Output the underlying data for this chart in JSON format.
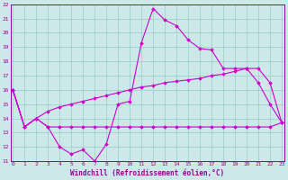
{
  "xlabel": "Windchill (Refroidissement éolien,°C)",
  "x": [
    0,
    1,
    2,
    3,
    4,
    5,
    6,
    7,
    8,
    9,
    10,
    11,
    12,
    13,
    14,
    15,
    16,
    17,
    18,
    19,
    20,
    21,
    22,
    23
  ],
  "line1": [
    16.0,
    13.4,
    14.0,
    13.4,
    12.0,
    11.5,
    11.8,
    11.0,
    12.2,
    15.0,
    15.2,
    19.3,
    21.7,
    20.9,
    20.5,
    19.5,
    18.9,
    18.8,
    17.5,
    17.5,
    17.5,
    16.5,
    15.0,
    13.7
  ],
  "line2": [
    16.0,
    13.4,
    14.0,
    13.4,
    13.4,
    13.4,
    13.4,
    13.4,
    13.4,
    13.4,
    13.4,
    13.4,
    13.4,
    13.4,
    13.4,
    13.4,
    13.4,
    13.4,
    13.4,
    13.4,
    13.4,
    13.4,
    13.4,
    13.7
  ],
  "line3": [
    16.0,
    13.4,
    14.0,
    14.5,
    14.8,
    15.0,
    15.2,
    15.4,
    15.6,
    15.8,
    16.0,
    16.2,
    16.3,
    16.5,
    16.6,
    16.7,
    16.8,
    17.0,
    17.1,
    17.3,
    17.5,
    17.5,
    16.5,
    13.7
  ],
  "ylim": [
    11,
    22
  ],
  "xlim": [
    0,
    23
  ],
  "yticks": [
    11,
    12,
    13,
    14,
    15,
    16,
    17,
    18,
    19,
    20,
    21,
    22
  ],
  "xticks": [
    0,
    1,
    2,
    3,
    4,
    5,
    6,
    7,
    8,
    9,
    10,
    11,
    12,
    13,
    14,
    15,
    16,
    17,
    18,
    19,
    20,
    21,
    22,
    23
  ],
  "line_color": "#cc00cc",
  "bg_color": "#cce8e8",
  "grid_color": "#99cccc",
  "tick_color": "#990099",
  "label_color": "#990099"
}
